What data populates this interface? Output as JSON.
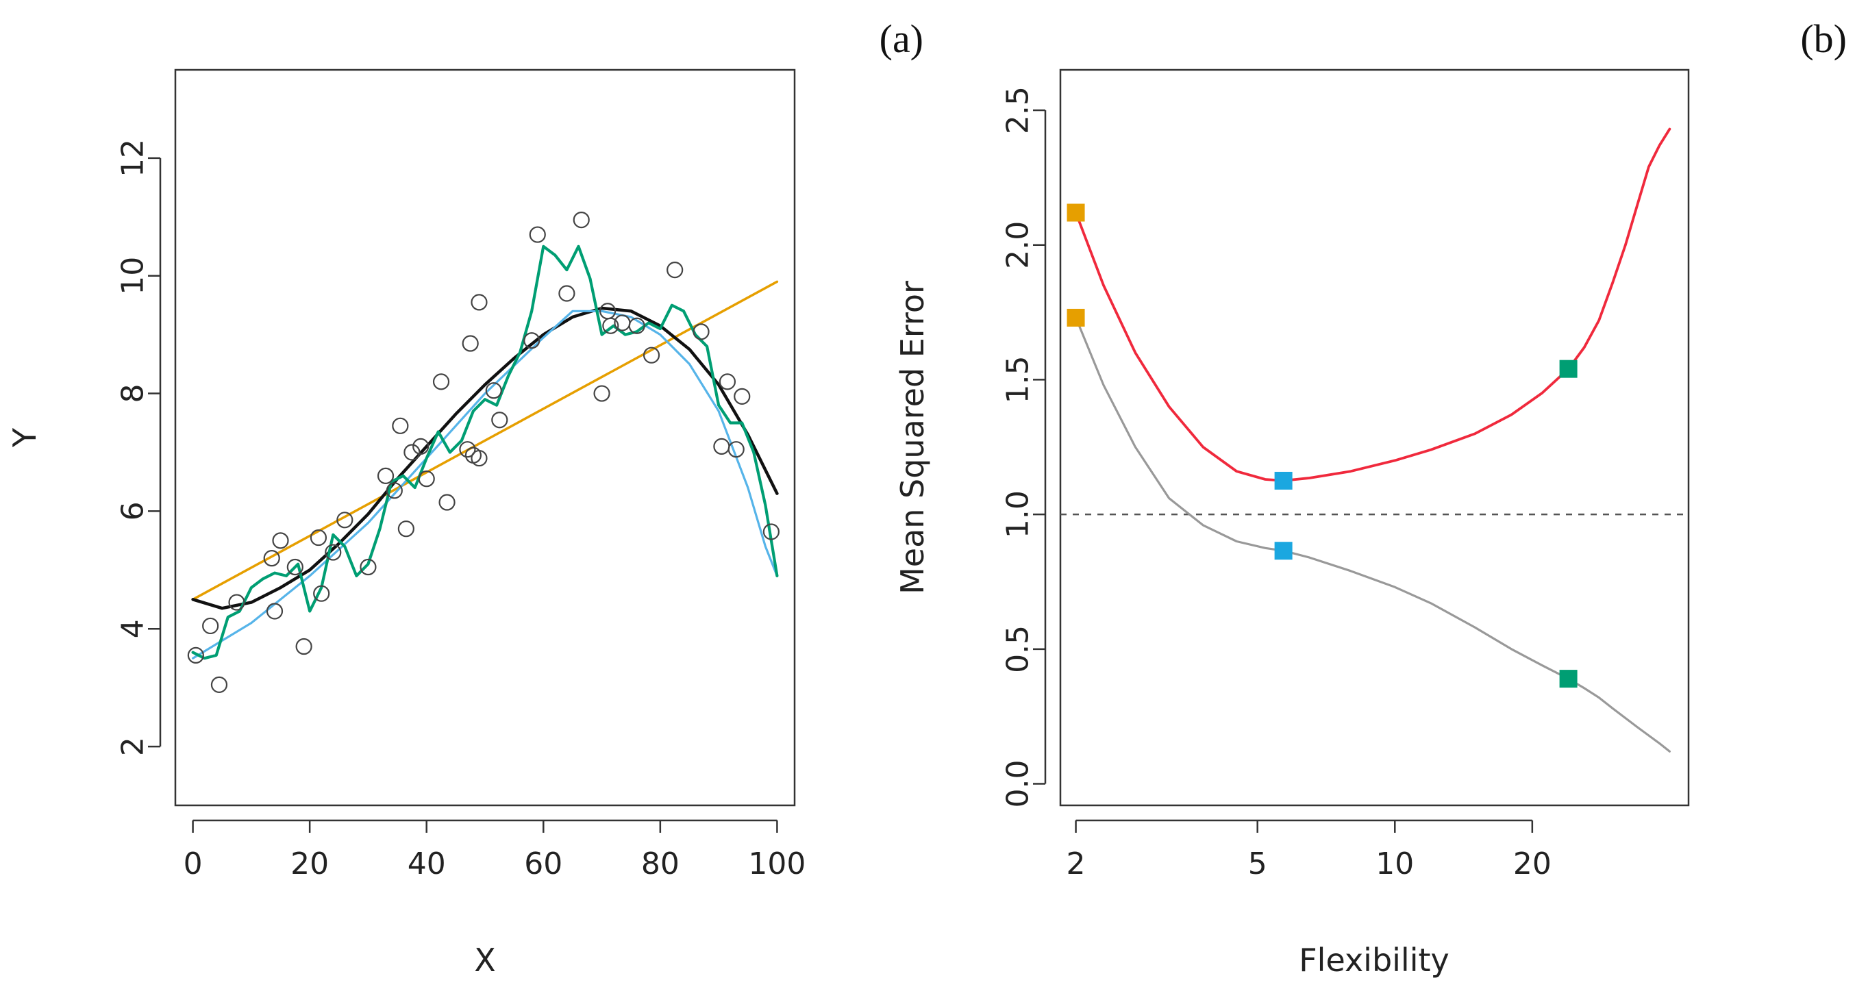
{
  "chart_data": [
    {
      "type": "scatter",
      "panel_label": "(a)",
      "xlabel": "X",
      "ylabel": "Y",
      "xlim": [
        -3,
        103
      ],
      "ylim": [
        1.0,
        13.5
      ],
      "x_ticks": [
        0,
        20,
        40,
        60,
        80,
        100
      ],
      "y_ticks": [
        2,
        4,
        6,
        8,
        10,
        12
      ],
      "grid": false,
      "points": {
        "x": [
          0.5,
          3,
          4.5,
          7.5,
          13.5,
          14,
          15,
          17.5,
          19,
          21.5,
          22,
          24,
          26,
          30,
          33,
          34.5,
          35.5,
          36.5,
          37.5,
          39,
          40,
          42.5,
          43.5,
          47,
          47.5,
          48,
          49,
          49,
          51.5,
          52.5,
          58,
          59,
          64,
          66.5,
          70,
          71,
          71.5,
          73.5,
          76,
          78.5,
          82.5,
          87,
          90.5,
          91.5,
          93,
          94,
          99
        ],
        "y": [
          3.55,
          4.05,
          3.05,
          4.45,
          5.2,
          4.3,
          5.5,
          5.05,
          3.7,
          5.55,
          4.6,
          5.3,
          5.85,
          5.05,
          6.6,
          6.35,
          7.45,
          5.7,
          7.0,
          7.1,
          6.55,
          8.2,
          6.15,
          7.05,
          8.85,
          6.95,
          9.55,
          6.9,
          8.05,
          7.55,
          8.9,
          10.7,
          9.7,
          10.95,
          8.0,
          9.4,
          9.15,
          9.2,
          9.15,
          8.65,
          10.1,
          9.05,
          7.1,
          8.2,
          7.05,
          7.95,
          5.65
        ]
      },
      "series": [
        {
          "color": "#E69F00",
          "x": [
            0,
            100
          ],
          "y": [
            4.5,
            9.9
          ]
        },
        {
          "color": "#111111",
          "x": [
            0,
            5,
            10,
            15,
            20,
            25,
            30,
            35,
            40,
            45,
            50,
            55,
            60,
            65,
            70,
            75,
            80,
            85,
            90,
            95,
            100
          ],
          "y": [
            4.5,
            4.35,
            4.45,
            4.7,
            5.0,
            5.45,
            5.95,
            6.55,
            7.1,
            7.65,
            8.15,
            8.6,
            9.0,
            9.3,
            9.45,
            9.4,
            9.15,
            8.75,
            8.15,
            7.3,
            6.3
          ]
        },
        {
          "color": "#56B4E9",
          "x": [
            0,
            10,
            20,
            30,
            40,
            50,
            60,
            65,
            70,
            75,
            80,
            85,
            90,
            95,
            98,
            100
          ],
          "y": [
            3.5,
            4.1,
            4.9,
            5.8,
            6.9,
            8.0,
            8.95,
            9.4,
            9.4,
            9.3,
            9.0,
            8.5,
            7.7,
            6.4,
            5.4,
            4.9
          ]
        },
        {
          "color": "#009E73",
          "x": [
            0,
            2,
            4,
            6,
            8,
            10,
            12,
            14,
            16,
            18,
            20,
            22,
            24,
            26,
            28,
            30,
            32,
            34,
            36,
            38,
            40,
            42,
            44,
            46,
            48,
            50,
            52,
            54,
            56,
            58,
            60,
            62,
            64,
            66,
            68,
            70,
            72,
            74,
            76,
            78,
            80,
            82,
            84,
            86,
            88,
            90,
            92,
            94,
            96,
            98,
            100
          ],
          "y": [
            3.6,
            3.5,
            3.55,
            4.2,
            4.3,
            4.7,
            4.85,
            4.95,
            4.9,
            5.1,
            4.3,
            4.7,
            5.6,
            5.4,
            4.9,
            5.1,
            5.7,
            6.5,
            6.6,
            6.4,
            6.9,
            7.35,
            7.0,
            7.2,
            7.7,
            7.9,
            7.8,
            8.3,
            8.7,
            9.4,
            10.5,
            10.35,
            10.1,
            10.5,
            9.95,
            9.0,
            9.15,
            9.0,
            9.05,
            9.2,
            9.1,
            9.5,
            9.4,
            9.0,
            8.8,
            7.8,
            7.5,
            7.5,
            7.0,
            6.1,
            4.9
          ]
        }
      ]
    },
    {
      "type": "line",
      "panel_label": "(b)",
      "xlabel": "Flexibility",
      "ylabel": "Mean Squared Error",
      "x_scale": "log",
      "xlim": [
        1.85,
        44
      ],
      "ylim": [
        -0.08,
        2.65
      ],
      "x_ticks": [
        2,
        5,
        10,
        20
      ],
      "y_ticks": [
        "0.0",
        "0.5",
        "1.0",
        "1.5",
        "2.0",
        "2.5"
      ],
      "grid": false,
      "reference_line": {
        "y": 1.0,
        "style": "dashed",
        "color": "#555555"
      },
      "series": [
        {
          "color": "#F0293C",
          "x": [
            2,
            2.3,
            2.7,
            3.2,
            3.8,
            4.5,
            5.2,
            5.7,
            6.5,
            8,
            10,
            12,
            15,
            18,
            21,
            24,
            26,
            28,
            30,
            32,
            34,
            36,
            38,
            40
          ],
          "y": [
            2.12,
            1.85,
            1.6,
            1.4,
            1.25,
            1.16,
            1.13,
            1.125,
            1.135,
            1.16,
            1.2,
            1.24,
            1.3,
            1.37,
            1.45,
            1.54,
            1.62,
            1.72,
            1.86,
            2.0,
            2.15,
            2.29,
            2.37,
            2.43
          ]
        },
        {
          "color": "#999999",
          "x": [
            2,
            2.3,
            2.7,
            3.2,
            3.8,
            4.5,
            5.2,
            5.7,
            6.5,
            8,
            10,
            12,
            15,
            18,
            21,
            24,
            26,
            28,
            30,
            34,
            38,
            40
          ],
          "y": [
            1.73,
            1.48,
            1.25,
            1.06,
            0.96,
            0.9,
            0.875,
            0.865,
            0.84,
            0.79,
            0.73,
            0.67,
            0.58,
            0.5,
            0.44,
            0.39,
            0.355,
            0.32,
            0.28,
            0.21,
            0.15,
            0.12
          ]
        }
      ],
      "markers": [
        {
          "x": 2,
          "y": 2.12,
          "color": "#E69F00"
        },
        {
          "x": 2,
          "y": 1.73,
          "color": "#E69F00"
        },
        {
          "x": 5.7,
          "y": 1.125,
          "color": "#1BA7E0"
        },
        {
          "x": 5.7,
          "y": 0.865,
          "color": "#1BA7E0"
        },
        {
          "x": 24,
          "y": 1.54,
          "color": "#009E73"
        },
        {
          "x": 24,
          "y": 0.39,
          "color": "#009E73"
        }
      ]
    }
  ]
}
